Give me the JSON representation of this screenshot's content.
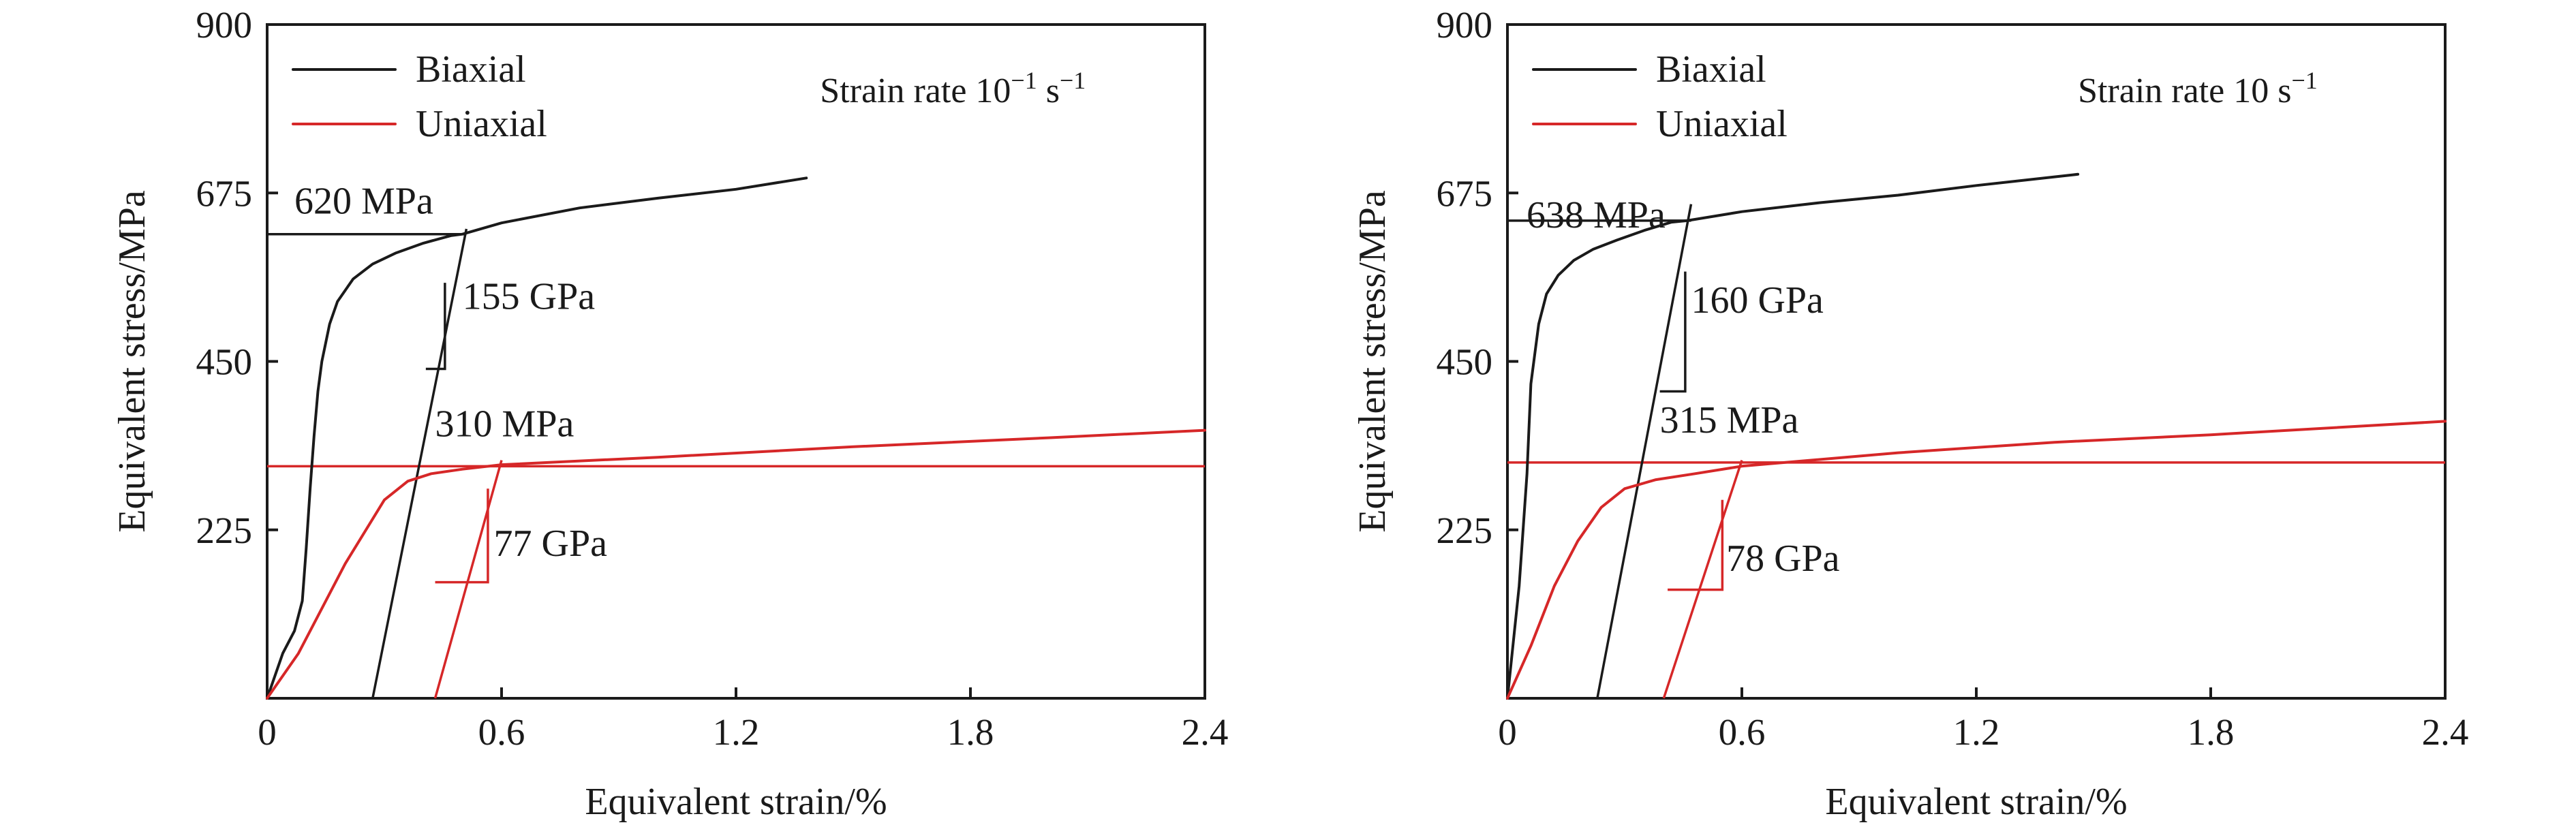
{
  "chart_data": [
    {
      "type": "line",
      "xlabel": "Equivalent strain/%",
      "ylabel": "Equivalent stress/MPa",
      "xlim": [
        0,
        2.4
      ],
      "ylim": [
        0,
        900
      ],
      "xticks": [
        0,
        0.6,
        1.2,
        1.8,
        2.4
      ],
      "xtick_labels": [
        "0",
        "0.6",
        "1.2",
        "1.8",
        "2.4"
      ],
      "yticks": [
        225,
        450,
        675,
        900
      ],
      "ytick_labels": [
        "225",
        "450",
        "675",
        "900"
      ],
      "legend": {
        "position": "top-left",
        "entries": [
          "Biaxial",
          "Uniaxial"
        ]
      },
      "rate_label": {
        "prefix": "Strain rate 10",
        "sup": "−1",
        "suffix": " s",
        "sup2": "−1"
      },
      "colors": {
        "biaxial": "#1a1a1a",
        "uniaxial": "#d62728"
      },
      "series": [
        {
          "name": "Biaxial",
          "x": [
            0.0,
            0.04,
            0.07,
            0.09,
            0.1,
            0.11,
            0.12,
            0.13,
            0.14,
            0.16,
            0.18,
            0.22,
            0.27,
            0.33,
            0.4,
            0.47,
            0.5,
            0.6,
            0.8,
            1.0,
            1.2,
            1.38
          ],
          "y": [
            0,
            60,
            90,
            130,
            200,
            280,
            350,
            410,
            450,
            500,
            530,
            560,
            580,
            595,
            608,
            618,
            620,
            635,
            655,
            668,
            680,
            695
          ]
        },
        {
          "name": "Uniaxial",
          "x": [
            0.0,
            0.08,
            0.2,
            0.3,
            0.36,
            0.42,
            0.5,
            0.6,
            1.0,
            1.5,
            2.0,
            2.4
          ],
          "y": [
            0,
            60,
            180,
            265,
            290,
            300,
            306,
            312,
            322,
            336,
            348,
            358
          ]
        }
      ],
      "guides": {
        "biaxial_yield": 620,
        "biaxial_unload": {
          "x": [
            0.27,
            0.51
          ],
          "y": [
            0,
            627
          ]
        },
        "biaxial_slope_tri": {
          "x": 0.455,
          "y_top": 555,
          "y_bottom": 440
        },
        "uniaxial_yield": 310,
        "uniaxial_unload": {
          "x": [
            0.43,
            0.6
          ],
          "y": [
            0,
            318
          ]
        },
        "uniaxial_slope_tri": {
          "x0": 0.43,
          "x1": 0.565,
          "y_top": 280,
          "y_bottom": 155
        }
      },
      "annotations": {
        "biaxial_yield": "620 MPa",
        "biaxial_modulus": "155 GPa",
        "uniaxial_yield": "310 MPa",
        "uniaxial_modulus": "77 GPa"
      }
    },
    {
      "type": "line",
      "xlabel": "Equivalent strain/%",
      "ylabel": "Equivalent stress/MPa",
      "xlim": [
        0,
        2.4
      ],
      "ylim": [
        0,
        900
      ],
      "xticks": [
        0,
        0.6,
        1.2,
        1.8,
        2.4
      ],
      "xtick_labels": [
        "0",
        "0.6",
        "1.2",
        "1.8",
        "2.4"
      ],
      "yticks": [
        225,
        450,
        675,
        900
      ],
      "ytick_labels": [
        "225",
        "450",
        "675",
        "900"
      ],
      "legend": {
        "position": "top-left",
        "entries": [
          "Biaxial",
          "Uniaxial"
        ]
      },
      "rate_label": {
        "prefix": "Strain rate 10 s",
        "sup": "−1",
        "suffix": "",
        "sup2": ""
      },
      "colors": {
        "biaxial": "#1a1a1a",
        "uniaxial": "#d62728"
      },
      "series": [
        {
          "name": "Biaxial",
          "x": [
            0.0,
            0.03,
            0.05,
            0.06,
            0.08,
            0.1,
            0.13,
            0.17,
            0.22,
            0.28,
            0.35,
            0.42,
            0.46,
            0.6,
            0.8,
            1.0,
            1.2,
            1.46
          ],
          "y": [
            0,
            150,
            300,
            420,
            500,
            540,
            565,
            585,
            600,
            612,
            625,
            636,
            638,
            650,
            662,
            672,
            685,
            700
          ]
        },
        {
          "name": "Uniaxial",
          "x": [
            0.0,
            0.06,
            0.12,
            0.18,
            0.24,
            0.3,
            0.38,
            0.48,
            0.6,
            1.0,
            1.4,
            1.8,
            2.4
          ],
          "y": [
            0,
            70,
            150,
            210,
            255,
            280,
            292,
            300,
            310,
            328,
            342,
            352,
            370
          ]
        }
      ],
      "guides": {
        "biaxial_yield": 638,
        "biaxial_unload": {
          "x": [
            0.23,
            0.47
          ],
          "y": [
            0,
            660
          ]
        },
        "biaxial_slope_tri": {
          "x0": 0.39,
          "x1": 0.455,
          "y_top": 570,
          "y_bottom": 410
        },
        "uniaxial_yield": 315,
        "uniaxial_unload": {
          "x": [
            0.4,
            0.6
          ],
          "y": [
            0,
            318
          ]
        },
        "uniaxial_slope_tri": {
          "x0": 0.41,
          "x1": 0.55,
          "y_top": 265,
          "y_bottom": 145
        }
      },
      "annotations": {
        "biaxial_yield": "638 MPa",
        "biaxial_modulus": "160 GPa",
        "uniaxial_yield": "315 MPa",
        "uniaxial_modulus": "78 GPa"
      }
    }
  ]
}
